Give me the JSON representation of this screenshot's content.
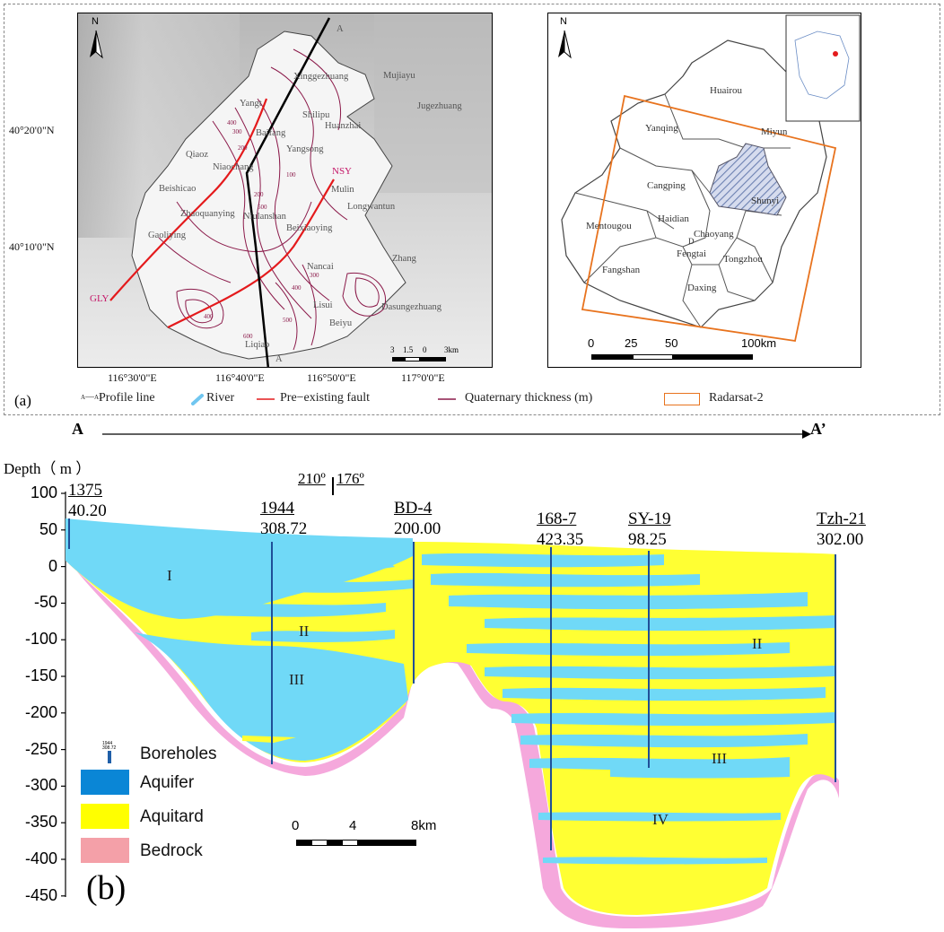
{
  "panel_a": {
    "label": "(a)",
    "left_map": {
      "north": "N",
      "lat_labels": [
        "40°20'0\"N",
        "40°10'0\"N"
      ],
      "lon_labels": [
        "116°30'0\"E",
        "116°40'0\"E",
        "116°50'0\"E",
        "117°0'0\"E"
      ],
      "profile_ends": [
        "A",
        "A"
      ],
      "fault_labels": [
        "GLY",
        "NSY"
      ],
      "scale": [
        "3",
        "1.5",
        "0",
        "3km"
      ],
      "places": [
        "Mujiayu",
        "Xinggezhuang",
        "Jugezhuang",
        "Yangt",
        "Shilipu",
        "Huanzhai",
        "Baifang",
        "Qiaoz",
        "Niaochang",
        "Yangsong",
        "Beishicao",
        "Mulin",
        "Longwantun",
        "Zhaoquanying",
        "Niulanshan",
        "Beixiaoying",
        "Gaoliying",
        "Zhang",
        "Nancai",
        "Lisui",
        "Dasungezhuang",
        "Beiyu",
        "Liqiao"
      ],
      "contour_labels": [
        "400",
        "300",
        "200",
        "100",
        "200",
        "300",
        "400",
        "500",
        "400",
        "500",
        "600"
      ]
    },
    "right_map": {
      "north": "N",
      "districts": [
        "Huairou",
        "Yanqing",
        "Miyun",
        "Cangping",
        "Shunyi",
        "Mentougou",
        "Haidian",
        "Chaoyang",
        "D",
        "Fengtai",
        "Tongzhou",
        "Fangshan",
        "Daxing"
      ],
      "scale": [
        "0",
        "25",
        "50",
        "100km"
      ]
    },
    "legend": [
      "Profile line",
      "River",
      "Pre−existing  fault",
      "Quaternary thickness (m)",
      "Radarsat-2"
    ],
    "legend_profile_glyph": "A──A1"
  },
  "panel_b": {
    "label": "(b)",
    "section_start": "A",
    "section_end": "A’",
    "y_title": "Depth（ m ）",
    "y_ticks": [
      "100",
      "50",
      "0",
      "-50",
      "-100",
      "-150",
      "-200",
      "-250",
      "-300",
      "-350",
      "-400",
      "-450"
    ],
    "bearing": [
      "210º",
      "176º"
    ],
    "wells": [
      {
        "name": "1375",
        "value": "40.20"
      },
      {
        "name": "1944",
        "value": "308.72"
      },
      {
        "name": "BD-4",
        "value": "200.00"
      },
      {
        "name": "168-7",
        "value": "423.35"
      },
      {
        "name": "SY-19",
        "value": "98.25"
      },
      {
        "name": "Tzh-21",
        "value": "302.00"
      }
    ],
    "aquifer_labels": [
      "I",
      "II",
      "III",
      "II",
      "III",
      "IV"
    ],
    "legend": [
      {
        "label": "Boreholes",
        "color": "#1f5fa8"
      },
      {
        "label": "Aquifer",
        "color": "#0a86d6"
      },
      {
        "label": "Aquitard",
        "color": "#ffff00"
      },
      {
        "label": "Bedrock",
        "color": "#f4a0a8"
      }
    ],
    "borehole_icon_text": [
      "1944",
      "308.72"
    ],
    "scale": [
      "0",
      "4",
      "8km"
    ]
  },
  "colors": {
    "aquifer": "#70d9f7",
    "aquitard": "#ffff33",
    "bedrock": "#f5a8dc",
    "fault": "#e41a1c",
    "contour": "#8b1a4a",
    "radarsat": "#e8731e",
    "shunyi_hatch": "#7a8cb8"
  }
}
